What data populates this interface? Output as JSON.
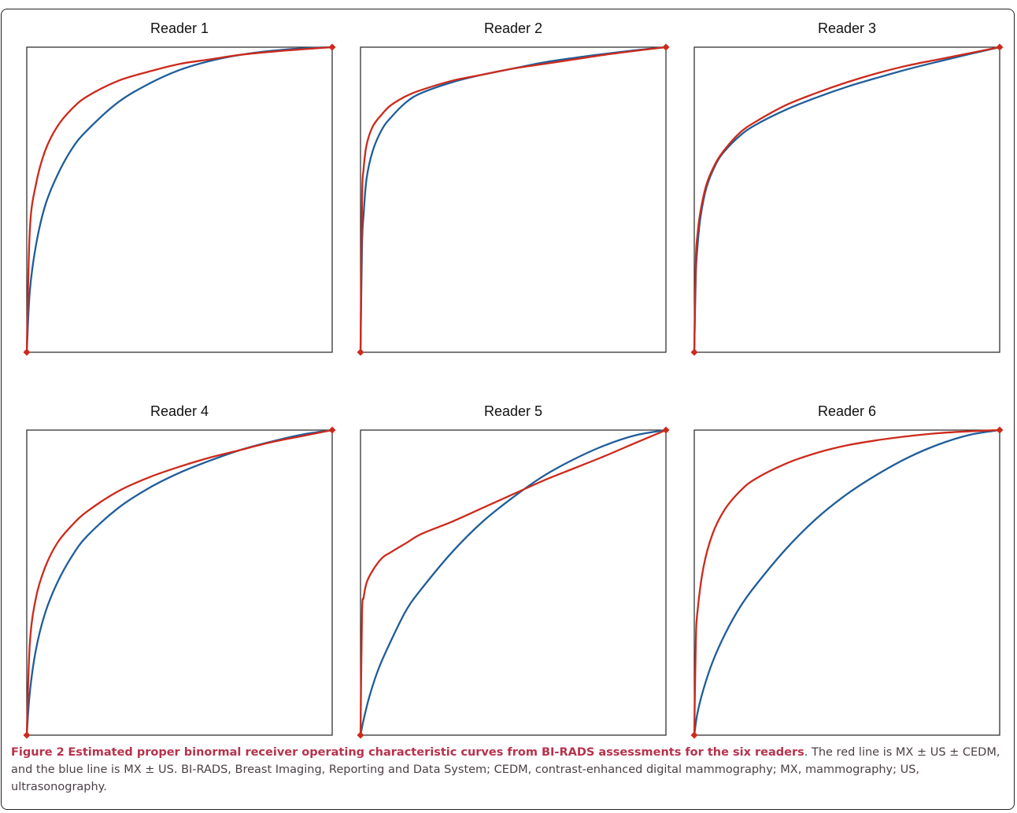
{
  "figure": {
    "caption_label": "Figure 2",
    "caption_title": "Estimated proper binormal receiver operating characteristic curves from BI-RADS assessments for the six readers",
    "caption_text": ". The red line is MX ± US ± CEDM, and the blue line is MX ± US. BI-RADS, Breast Imaging, Reporting and Data System; CEDM, contrast-enhanced digital mammography; MX, mammography; US, ultrasonography."
  },
  "colors": {
    "red": "#cc2a1c",
    "blue": "#1f5d9a",
    "frame": "#222222"
  },
  "chart_data": [
    {
      "type": "line",
      "title": "Reader 1",
      "xlim": [
        0,
        1
      ],
      "ylim": [
        0,
        1
      ],
      "grid": false,
      "series": [
        {
          "color": "#cc2a1c",
          "x": [
            0,
            0.01,
            0.03,
            0.06,
            0.1,
            0.15,
            0.2,
            0.3,
            0.4,
            0.5,
            0.6,
            0.7,
            0.8,
            0.9,
            1
          ],
          "y": [
            0,
            0.4,
            0.55,
            0.66,
            0.74,
            0.8,
            0.84,
            0.89,
            0.92,
            0.945,
            0.96,
            0.975,
            0.985,
            0.993,
            1
          ]
        },
        {
          "color": "#1f5d9a",
          "x": [
            0,
            0.01,
            0.03,
            0.06,
            0.1,
            0.15,
            0.2,
            0.3,
            0.4,
            0.5,
            0.6,
            0.7,
            0.8,
            0.9,
            1
          ],
          "y": [
            0,
            0.2,
            0.35,
            0.48,
            0.58,
            0.67,
            0.73,
            0.82,
            0.88,
            0.925,
            0.955,
            0.975,
            0.988,
            0.996,
            1
          ]
        }
      ]
    },
    {
      "type": "line",
      "title": "Reader 2",
      "xlim": [
        0,
        1
      ],
      "ylim": [
        0,
        1
      ],
      "grid": false,
      "series": [
        {
          "color": "#cc2a1c",
          "x": [
            0,
            0.005,
            0.01,
            0.02,
            0.04,
            0.07,
            0.1,
            0.15,
            0.2,
            0.3,
            0.4,
            0.5,
            0.6,
            0.7,
            0.8,
            0.9,
            1
          ],
          "y": [
            0,
            0.5,
            0.6,
            0.68,
            0.74,
            0.78,
            0.81,
            0.84,
            0.86,
            0.89,
            0.91,
            0.93,
            0.945,
            0.96,
            0.975,
            0.988,
            1
          ]
        },
        {
          "color": "#1f5d9a",
          "x": [
            0,
            0.005,
            0.01,
            0.02,
            0.04,
            0.07,
            0.1,
            0.15,
            0.2,
            0.3,
            0.4,
            0.5,
            0.6,
            0.7,
            0.8,
            0.9,
            1
          ],
          "y": [
            0,
            0.35,
            0.45,
            0.57,
            0.66,
            0.73,
            0.77,
            0.82,
            0.85,
            0.885,
            0.91,
            0.93,
            0.95,
            0.965,
            0.978,
            0.99,
            1
          ]
        }
      ]
    },
    {
      "type": "line",
      "title": "Reader 3",
      "xlim": [
        0,
        1
      ],
      "ylim": [
        0,
        1
      ],
      "grid": false,
      "series": [
        {
          "color": "#cc2a1c",
          "x": [
            0,
            0.005,
            0.01,
            0.02,
            0.04,
            0.07,
            0.1,
            0.15,
            0.2,
            0.3,
            0.4,
            0.5,
            0.6,
            0.7,
            0.8,
            0.9,
            1
          ],
          "y": [
            0,
            0.3,
            0.38,
            0.46,
            0.55,
            0.62,
            0.665,
            0.72,
            0.755,
            0.81,
            0.85,
            0.885,
            0.915,
            0.94,
            0.96,
            0.98,
            1
          ]
        },
        {
          "color": "#1f5d9a",
          "x": [
            0,
            0.005,
            0.01,
            0.02,
            0.04,
            0.07,
            0.1,
            0.15,
            0.2,
            0.3,
            0.4,
            0.5,
            0.6,
            0.7,
            0.8,
            0.9,
            1
          ],
          "y": [
            0,
            0.25,
            0.34,
            0.44,
            0.54,
            0.615,
            0.66,
            0.71,
            0.745,
            0.795,
            0.835,
            0.87,
            0.9,
            0.928,
            0.953,
            0.977,
            1
          ]
        }
      ]
    },
    {
      "type": "line",
      "title": "Reader 4",
      "xlim": [
        0,
        1
      ],
      "ylim": [
        0,
        1
      ],
      "grid": false,
      "series": [
        {
          "color": "#cc2a1c",
          "x": [
            0,
            0.01,
            0.03,
            0.06,
            0.1,
            0.15,
            0.2,
            0.3,
            0.4,
            0.5,
            0.6,
            0.7,
            0.8,
            0.9,
            1
          ],
          "y": [
            0,
            0.3,
            0.45,
            0.55,
            0.63,
            0.69,
            0.735,
            0.8,
            0.845,
            0.88,
            0.91,
            0.935,
            0.96,
            0.98,
            1
          ]
        },
        {
          "color": "#1f5d9a",
          "x": [
            0,
            0.01,
            0.03,
            0.06,
            0.1,
            0.15,
            0.2,
            0.3,
            0.4,
            0.5,
            0.6,
            0.7,
            0.8,
            0.9,
            1
          ],
          "y": [
            0,
            0.14,
            0.28,
            0.4,
            0.5,
            0.59,
            0.655,
            0.745,
            0.81,
            0.86,
            0.9,
            0.935,
            0.962,
            0.985,
            1
          ]
        }
      ]
    },
    {
      "type": "line",
      "title": "Reader 5",
      "xlim": [
        0,
        1
      ],
      "ylim": [
        0,
        1
      ],
      "grid": false,
      "series": [
        {
          "color": "#cc2a1c",
          "x": [
            0,
            0.005,
            0.01,
            0.02,
            0.04,
            0.07,
            0.1,
            0.15,
            0.2,
            0.3,
            0.4,
            0.5,
            0.6,
            0.7,
            0.8,
            0.9,
            1
          ],
          "y": [
            0,
            0.4,
            0.45,
            0.5,
            0.54,
            0.58,
            0.6,
            0.63,
            0.66,
            0.7,
            0.745,
            0.79,
            0.835,
            0.875,
            0.915,
            0.958,
            1
          ]
        },
        {
          "color": "#1f5d9a",
          "x": [
            0,
            0.01,
            0.03,
            0.06,
            0.1,
            0.15,
            0.2,
            0.3,
            0.4,
            0.5,
            0.6,
            0.7,
            0.8,
            0.9,
            1
          ],
          "y": [
            0,
            0.05,
            0.13,
            0.22,
            0.31,
            0.41,
            0.48,
            0.6,
            0.7,
            0.78,
            0.85,
            0.905,
            0.95,
            0.983,
            1
          ]
        }
      ]
    },
    {
      "type": "line",
      "title": "Reader 6",
      "xlim": [
        0,
        1
      ],
      "ylim": [
        0,
        1
      ],
      "grid": false,
      "series": [
        {
          "color": "#cc2a1c",
          "x": [
            0,
            0.005,
            0.01,
            0.03,
            0.06,
            0.1,
            0.15,
            0.2,
            0.3,
            0.4,
            0.5,
            0.6,
            0.7,
            0.8,
            0.9,
            1
          ],
          "y": [
            0,
            0.3,
            0.4,
            0.55,
            0.66,
            0.74,
            0.8,
            0.84,
            0.89,
            0.925,
            0.95,
            0.967,
            0.98,
            0.99,
            0.996,
            1
          ]
        },
        {
          "color": "#1f5d9a",
          "x": [
            0,
            0.01,
            0.03,
            0.06,
            0.1,
            0.15,
            0.2,
            0.3,
            0.4,
            0.5,
            0.6,
            0.7,
            0.8,
            0.9,
            1
          ],
          "y": [
            0,
            0.07,
            0.15,
            0.24,
            0.33,
            0.42,
            0.49,
            0.61,
            0.71,
            0.79,
            0.855,
            0.91,
            0.953,
            0.984,
            1
          ]
        }
      ]
    }
  ]
}
